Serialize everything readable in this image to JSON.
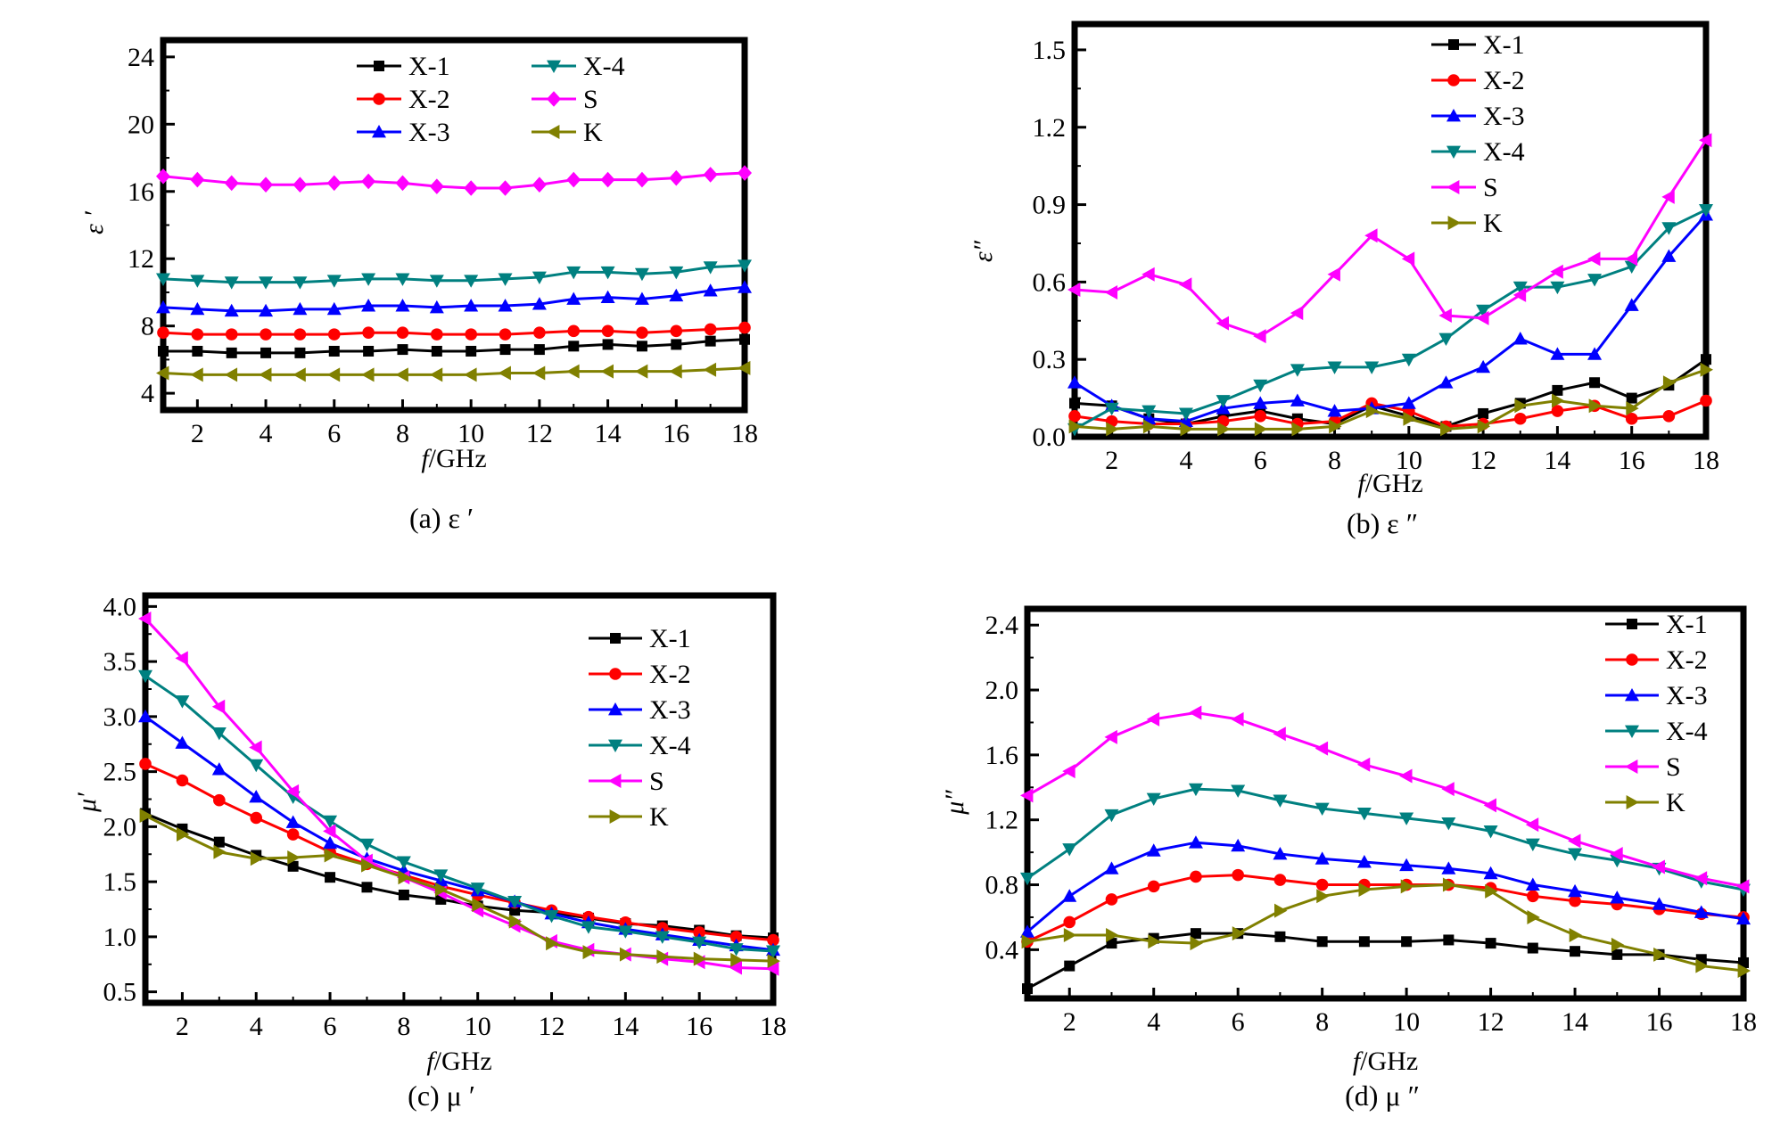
{
  "chart_data": [
    {
      "type": "line",
      "panel": "a",
      "caption": "(a)  ε ′",
      "ylabel": "ε ′",
      "xlabel": "f/GHz",
      "xlim": [
        1,
        18
      ],
      "ylim": [
        3,
        25
      ],
      "xticks": [
        2,
        4,
        6,
        8,
        10,
        12,
        14,
        16,
        18
      ],
      "yticks": [
        4,
        8,
        12,
        16,
        20,
        24
      ],
      "legend_position": "top-center",
      "legend_columns": 2,
      "x": [
        1,
        2,
        3,
        4,
        5,
        6,
        7,
        8,
        9,
        10,
        11,
        12,
        13,
        14,
        15,
        16,
        17,
        18
      ],
      "series": [
        {
          "name": "X-1",
          "color": "#000000",
          "marker": "square",
          "values": [
            6.5,
            6.5,
            6.4,
            6.4,
            6.4,
            6.5,
            6.5,
            6.6,
            6.5,
            6.5,
            6.6,
            6.6,
            6.8,
            6.9,
            6.8,
            6.9,
            7.1,
            7.2
          ]
        },
        {
          "name": "X-2",
          "color": "#ff0000",
          "marker": "circle",
          "values": [
            7.6,
            7.5,
            7.5,
            7.5,
            7.5,
            7.5,
            7.6,
            7.6,
            7.5,
            7.5,
            7.5,
            7.6,
            7.7,
            7.7,
            7.6,
            7.7,
            7.8,
            7.9
          ]
        },
        {
          "name": "X-3",
          "color": "#0000ff",
          "marker": "triangle-up",
          "values": [
            9.1,
            9.0,
            8.9,
            8.9,
            9.0,
            9.0,
            9.2,
            9.2,
            9.1,
            9.2,
            9.2,
            9.3,
            9.6,
            9.7,
            9.6,
            9.8,
            10.1,
            10.3
          ]
        },
        {
          "name": "X-4",
          "color": "#008080",
          "marker": "triangle-down",
          "values": [
            10.8,
            10.7,
            10.6,
            10.6,
            10.6,
            10.7,
            10.8,
            10.8,
            10.7,
            10.7,
            10.8,
            10.9,
            11.2,
            11.2,
            11.1,
            11.2,
            11.5,
            11.6
          ]
        },
        {
          "name": "S",
          "color": "#ff00ff",
          "marker": "diamond",
          "values": [
            16.9,
            16.7,
            16.5,
            16.4,
            16.4,
            16.5,
            16.6,
            16.5,
            16.3,
            16.2,
            16.2,
            16.4,
            16.7,
            16.7,
            16.7,
            16.8,
            17.0,
            17.1
          ]
        },
        {
          "name": "K",
          "color": "#808000",
          "marker": "triangle-left",
          "values": [
            5.2,
            5.1,
            5.1,
            5.1,
            5.1,
            5.1,
            5.1,
            5.1,
            5.1,
            5.1,
            5.2,
            5.2,
            5.3,
            5.3,
            5.3,
            5.3,
            5.4,
            5.5
          ]
        }
      ]
    },
    {
      "type": "line",
      "panel": "b",
      "caption": "(b)  ε ″",
      "ylabel": "ε″",
      "xlabel": "f/GHz",
      "xlim": [
        1,
        18
      ],
      "ylim": [
        0,
        1.6
      ],
      "xticks": [
        2,
        4,
        6,
        8,
        10,
        12,
        14,
        16,
        18
      ],
      "yticks": [
        0.0,
        0.3,
        0.6,
        0.9,
        1.2,
        1.5
      ],
      "ytick_labels": [
        "0.0",
        "0.3",
        "0.6",
        "0.9",
        "1.2",
        "1.5"
      ],
      "legend_position": "top-right",
      "legend_columns": 1,
      "x": [
        1,
        2,
        3,
        4,
        5,
        6,
        7,
        8,
        9,
        10,
        11,
        12,
        13,
        14,
        15,
        16,
        17,
        18
      ],
      "series": [
        {
          "name": "X-1",
          "color": "#000000",
          "marker": "square",
          "values": [
            0.13,
            0.12,
            0.07,
            0.05,
            0.08,
            0.1,
            0.07,
            0.05,
            0.12,
            0.08,
            0.04,
            0.09,
            0.13,
            0.18,
            0.21,
            0.15,
            0.2,
            0.3
          ]
        },
        {
          "name": "X-2",
          "color": "#ff0000",
          "marker": "circle",
          "values": [
            0.08,
            0.06,
            0.05,
            0.05,
            0.06,
            0.08,
            0.05,
            0.06,
            0.13,
            0.1,
            0.04,
            0.05,
            0.07,
            0.1,
            0.12,
            0.07,
            0.08,
            0.14
          ]
        },
        {
          "name": "X-3",
          "color": "#0000ff",
          "marker": "triangle-up",
          "values": [
            0.21,
            0.12,
            0.07,
            0.06,
            0.11,
            0.13,
            0.14,
            0.1,
            0.11,
            0.13,
            0.21,
            0.27,
            0.38,
            0.32,
            0.32,
            0.51,
            0.7,
            0.86
          ]
        },
        {
          "name": "X-4",
          "color": "#008080",
          "marker": "triangle-down",
          "values": [
            0.03,
            0.11,
            0.1,
            0.09,
            0.14,
            0.2,
            0.26,
            0.27,
            0.27,
            0.3,
            0.38,
            0.49,
            0.58,
            0.58,
            0.61,
            0.66,
            0.81,
            0.88
          ]
        },
        {
          "name": "S",
          "color": "#ff00ff",
          "marker": "triangle-left",
          "values": [
            0.57,
            0.56,
            0.63,
            0.59,
            0.44,
            0.39,
            0.48,
            0.63,
            0.78,
            0.69,
            0.47,
            0.46,
            0.55,
            0.64,
            0.69,
            0.69,
            0.93,
            1.15
          ]
        },
        {
          "name": "K",
          "color": "#808000",
          "marker": "triangle-right",
          "values": [
            0.04,
            0.03,
            0.04,
            0.03,
            0.03,
            0.03,
            0.03,
            0.04,
            0.1,
            0.07,
            0.03,
            0.04,
            0.12,
            0.14,
            0.12,
            0.11,
            0.21,
            0.26
          ]
        }
      ]
    },
    {
      "type": "line",
      "panel": "c",
      "caption": "(c)  μ ′",
      "ylabel": "μ′",
      "xlabel": "f/GHz",
      "xlim": [
        1,
        18
      ],
      "ylim": [
        0.4,
        4.1
      ],
      "xticks": [
        2,
        4,
        6,
        8,
        10,
        12,
        14,
        16,
        18
      ],
      "yticks": [
        0.5,
        1.0,
        1.5,
        2.0,
        2.5,
        3.0,
        3.5,
        4.0
      ],
      "ytick_labels": [
        "0.5",
        "1.0",
        "1.5",
        "2.0",
        "2.5",
        "3.0",
        "3.5",
        "4.0"
      ],
      "legend_position": "top-right",
      "legend_columns": 1,
      "x": [
        1,
        2,
        3,
        4,
        5,
        6,
        7,
        8,
        9,
        10,
        11,
        12,
        13,
        14,
        15,
        16,
        17,
        18
      ],
      "series": [
        {
          "name": "X-1",
          "color": "#000000",
          "marker": "square",
          "values": [
            2.12,
            1.98,
            1.86,
            1.74,
            1.64,
            1.54,
            1.45,
            1.38,
            1.34,
            1.28,
            1.24,
            1.22,
            1.17,
            1.12,
            1.1,
            1.06,
            1.01,
            0.99
          ]
        },
        {
          "name": "X-2",
          "color": "#ff0000",
          "marker": "circle",
          "values": [
            2.57,
            2.42,
            2.24,
            2.08,
            1.93,
            1.77,
            1.66,
            1.56,
            1.46,
            1.38,
            1.31,
            1.24,
            1.18,
            1.13,
            1.08,
            1.04,
            1.0,
            0.97
          ]
        },
        {
          "name": "X-3",
          "color": "#0000ff",
          "marker": "triangle-up",
          "values": [
            3.0,
            2.76,
            2.52,
            2.27,
            2.04,
            1.85,
            1.71,
            1.6,
            1.51,
            1.42,
            1.32,
            1.21,
            1.13,
            1.07,
            1.02,
            0.97,
            0.92,
            0.88
          ]
        },
        {
          "name": "X-4",
          "color": "#008080",
          "marker": "triangle-down",
          "values": [
            3.37,
            3.14,
            2.85,
            2.56,
            2.27,
            2.05,
            1.84,
            1.68,
            1.56,
            1.44,
            1.32,
            1.19,
            1.09,
            1.05,
            1.0,
            0.95,
            0.89,
            0.87
          ]
        },
        {
          "name": "S",
          "color": "#ff00ff",
          "marker": "triangle-left",
          "values": [
            3.89,
            3.53,
            3.09,
            2.72,
            2.32,
            1.96,
            1.69,
            1.54,
            1.4,
            1.24,
            1.1,
            0.96,
            0.88,
            0.84,
            0.8,
            0.77,
            0.72,
            0.71
          ]
        },
        {
          "name": "K",
          "color": "#808000",
          "marker": "triangle-right",
          "values": [
            2.1,
            1.93,
            1.77,
            1.71,
            1.72,
            1.74,
            1.65,
            1.54,
            1.43,
            1.29,
            1.14,
            0.94,
            0.86,
            0.84,
            0.82,
            0.8,
            0.79,
            0.78
          ]
        }
      ]
    },
    {
      "type": "line",
      "panel": "d",
      "caption": "(d)  μ ″",
      "ylabel": "μ″",
      "xlabel": "f/GHz",
      "xlim": [
        1,
        18
      ],
      "ylim": [
        0.1,
        2.5
      ],
      "xticks": [
        2,
        4,
        6,
        8,
        10,
        12,
        14,
        16,
        18
      ],
      "yticks": [
        0.4,
        0.8,
        1.2,
        1.6,
        2.0,
        2.4
      ],
      "ytick_labels": [
        "0.4",
        "0.8",
        "1.2",
        "1.6",
        "2.0",
        "2.4"
      ],
      "legend_position": "top-right",
      "legend_columns": 1,
      "x": [
        1,
        2,
        3,
        4,
        5,
        6,
        7,
        8,
        9,
        10,
        11,
        12,
        13,
        14,
        15,
        16,
        17,
        18
      ],
      "series": [
        {
          "name": "X-1",
          "color": "#000000",
          "marker": "square",
          "values": [
            0.16,
            0.3,
            0.44,
            0.47,
            0.5,
            0.5,
            0.48,
            0.45,
            0.45,
            0.45,
            0.46,
            0.44,
            0.41,
            0.39,
            0.37,
            0.37,
            0.34,
            0.32
          ]
        },
        {
          "name": "X-2",
          "color": "#ff0000",
          "marker": "circle",
          "values": [
            0.45,
            0.57,
            0.71,
            0.79,
            0.85,
            0.86,
            0.83,
            0.8,
            0.8,
            0.8,
            0.8,
            0.78,
            0.73,
            0.7,
            0.68,
            0.65,
            0.62,
            0.6
          ]
        },
        {
          "name": "X-3",
          "color": "#0000ff",
          "marker": "triangle-up",
          "values": [
            0.51,
            0.73,
            0.9,
            1.01,
            1.06,
            1.04,
            0.99,
            0.96,
            0.94,
            0.92,
            0.9,
            0.87,
            0.8,
            0.76,
            0.72,
            0.68,
            0.63,
            0.59
          ]
        },
        {
          "name": "X-4",
          "color": "#008080",
          "marker": "triangle-down",
          "values": [
            0.84,
            1.02,
            1.23,
            1.33,
            1.39,
            1.38,
            1.32,
            1.27,
            1.24,
            1.21,
            1.18,
            1.13,
            1.05,
            0.99,
            0.95,
            0.9,
            0.82,
            0.77
          ]
        },
        {
          "name": "S",
          "color": "#ff00ff",
          "marker": "triangle-left",
          "values": [
            1.35,
            1.5,
            1.71,
            1.82,
            1.86,
            1.82,
            1.73,
            1.64,
            1.54,
            1.47,
            1.39,
            1.29,
            1.17,
            1.07,
            0.99,
            0.91,
            0.84,
            0.79
          ]
        },
        {
          "name": "K",
          "color": "#808000",
          "marker": "triangle-right",
          "values": [
            0.45,
            0.49,
            0.49,
            0.45,
            0.44,
            0.5,
            0.64,
            0.73,
            0.77,
            0.79,
            0.8,
            0.76,
            0.6,
            0.49,
            0.43,
            0.37,
            0.3,
            0.27
          ]
        }
      ]
    }
  ]
}
